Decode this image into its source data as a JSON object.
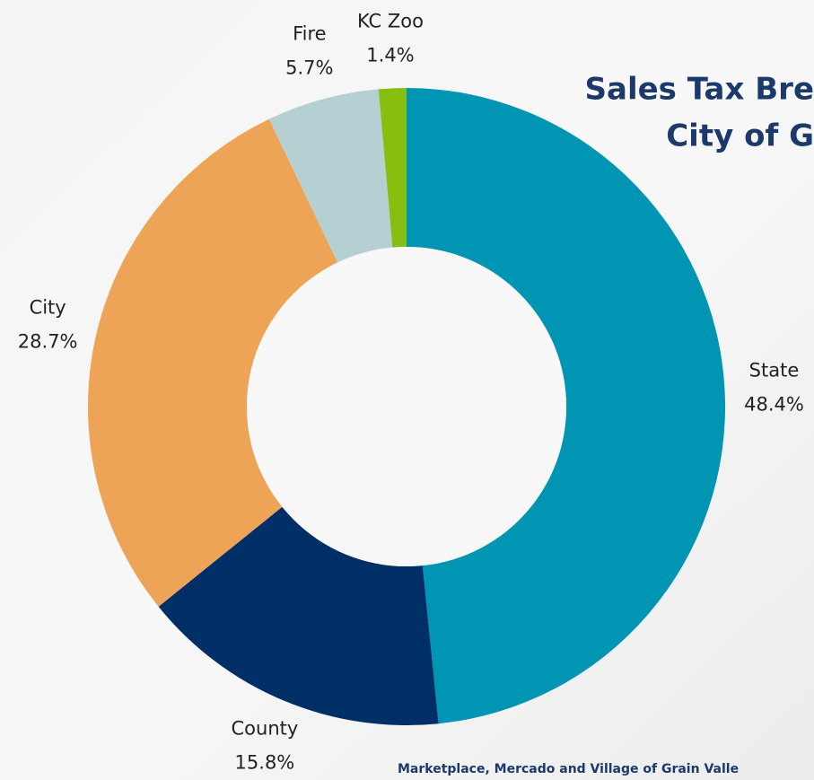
{
  "chart_data": {
    "type": "donut",
    "title": [
      "Sales Tax Bre",
      "City of G"
    ],
    "footnote": "Marketplace, Mercado and Village of Grain Valle",
    "categories": [
      "State",
      "County",
      "City",
      "Fire",
      "KC Zoo"
    ],
    "values": [
      48.4,
      15.8,
      28.7,
      5.7,
      1.4
    ],
    "value_labels": [
      "48.4%",
      "15.8%",
      "28.7%",
      "5.7%",
      "1.4%"
    ],
    "colors": [
      "#0095b3",
      "#002e66",
      "#eda457",
      "#b5d0d3",
      "#86bf0f"
    ]
  }
}
